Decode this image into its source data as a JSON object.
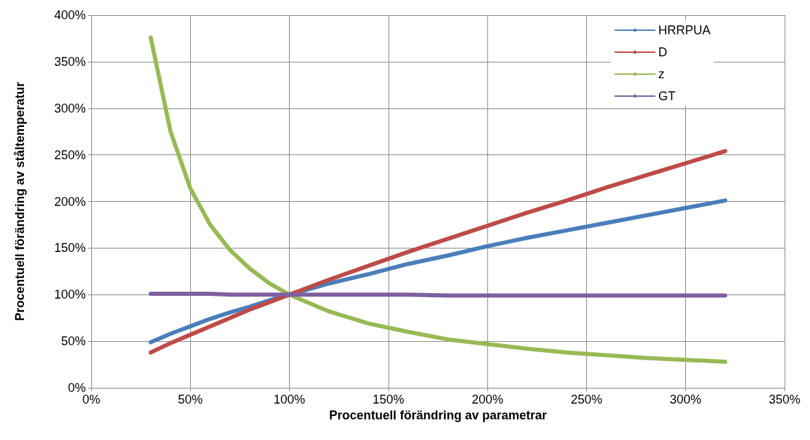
{
  "chart_data": {
    "type": "line",
    "xlabel": "Procentuell förändring av parametrar",
    "ylabel": "Procentuell förändring av ståltemperatur",
    "x": [
      30,
      40,
      50,
      60,
      70,
      80,
      90,
      100,
      120,
      140,
      160,
      180,
      200,
      220,
      240,
      260,
      280,
      300,
      320
    ],
    "series": [
      {
        "name": "HRRPUA",
        "color": "#4a7ebb",
        "values": [
          49,
          58,
          66,
          74,
          81,
          87,
          94,
          100,
          112,
          122,
          133,
          142,
          152,
          161,
          169,
          177,
          185,
          193,
          201
        ]
      },
      {
        "name": "D",
        "color": "#be4b48",
        "values": [
          38,
          48,
          57,
          66,
          75,
          84,
          92,
          100,
          116,
          131,
          146,
          160,
          174,
          188,
          201,
          215,
          228,
          241,
          254
        ]
      },
      {
        "name": "z",
        "color": "#98b954",
        "values": [
          376,
          275,
          214,
          175,
          148,
          128,
          112,
          100,
          82,
          69,
          60,
          52,
          47,
          42,
          38,
          35,
          32,
          30,
          28
        ]
      },
      {
        "name": "GT",
        "color": "#7d60a0",
        "values": [
          101,
          101,
          101,
          101,
          100,
          100,
          100,
          100,
          100,
          100,
          100,
          99,
          99,
          99,
          99,
          99,
          99,
          99,
          99
        ]
      }
    ],
    "xlim": [
      0,
      350
    ],
    "xticks": [
      {
        "value": 0,
        "label": "0%"
      },
      {
        "value": 50,
        "label": "50%"
      },
      {
        "value": 100,
        "label": "100%"
      },
      {
        "value": 150,
        "label": "150%"
      },
      {
        "value": 200,
        "label": "200%"
      },
      {
        "value": 250,
        "label": "250%"
      },
      {
        "value": 300,
        "label": "300%"
      },
      {
        "value": 350,
        "label": "350%"
      }
    ],
    "ylim": [
      0,
      400
    ],
    "yticks": [
      {
        "value": 0,
        "label": "0%"
      },
      {
        "value": 50,
        "label": "50%"
      },
      {
        "value": 100,
        "label": "100%"
      },
      {
        "value": 150,
        "label": "150%"
      },
      {
        "value": 200,
        "label": "200%"
      },
      {
        "value": 250,
        "label": "250%"
      },
      {
        "value": 300,
        "label": "300%"
      },
      {
        "value": 350,
        "label": "350%"
      },
      {
        "value": 400,
        "label": "400%"
      }
    ],
    "grid": true,
    "legend": "top right",
    "marker": "none",
    "line_style": "solid"
  }
}
